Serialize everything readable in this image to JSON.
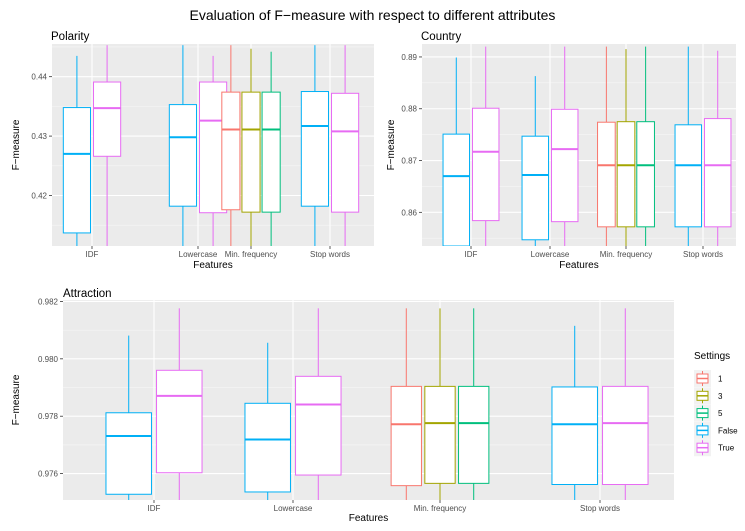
{
  "title": "Evaluation of F−measure with respect to different attributes",
  "legend": {
    "title": "Settings",
    "items": [
      {
        "label": "1",
        "color": "#F8766D"
      },
      {
        "label": "3",
        "color": "#A3A500"
      },
      {
        "label": "5",
        "color": "#00BF7D"
      },
      {
        "label": "False",
        "color": "#00B0F6"
      },
      {
        "label": "True",
        "color": "#E76BF3"
      }
    ]
  },
  "chart_data": [
    {
      "type": "box",
      "title": "Polarity",
      "xlabel": "Features",
      "ylabel": "F−measure",
      "ylim": [
        0.4115,
        0.4455
      ],
      "yticks": [
        0.42,
        0.43,
        0.44
      ],
      "ytick_labels": [
        "0.42",
        "0.43",
        "0.44"
      ],
      "categories": [
        "IDF",
        "Lowercase",
        "Min. frequency",
        "Stop words"
      ],
      "grid": true,
      "series": [
        {
          "setting": "1",
          "boxes": [
            {
              "category": "Min. frequency",
              "whislo": 0.4115,
              "q1": 0.4176,
              "median": 0.4311,
              "q3": 0.4374,
              "whishi": 0.4453
            }
          ]
        },
        {
          "setting": "3",
          "boxes": [
            {
              "category": "Min. frequency",
              "whislo": 0.4115,
              "q1": 0.4172,
              "median": 0.4311,
              "q3": 0.4374,
              "whishi": 0.4447
            }
          ]
        },
        {
          "setting": "5",
          "boxes": [
            {
              "category": "Min. frequency",
              "whislo": 0.4115,
              "q1": 0.4172,
              "median": 0.4311,
              "q3": 0.4374,
              "whishi": 0.4442
            }
          ]
        },
        {
          "setting": "False",
          "boxes": [
            {
              "category": "IDF",
              "whislo": 0.4115,
              "q1": 0.4137,
              "median": 0.427,
              "q3": 0.4348,
              "whishi": 0.4435
            },
            {
              "category": "Lowercase",
              "whislo": 0.4115,
              "q1": 0.4182,
              "median": 0.4298,
              "q3": 0.4353,
              "whishi": 0.4453
            },
            {
              "category": "Stop words",
              "whislo": 0.4115,
              "q1": 0.4182,
              "median": 0.4317,
              "q3": 0.4375,
              "whishi": 0.4453
            }
          ]
        },
        {
          "setting": "True",
          "boxes": [
            {
              "category": "IDF",
              "whislo": 0.4115,
              "q1": 0.4266,
              "median": 0.4347,
              "q3": 0.4391,
              "whishi": 0.4453
            },
            {
              "category": "Lowercase",
              "whislo": 0.4115,
              "q1": 0.4171,
              "median": 0.4326,
              "q3": 0.4391,
              "whishi": 0.4435
            },
            {
              "category": "Stop words",
              "whislo": 0.4115,
              "q1": 0.4172,
              "median": 0.4308,
              "q3": 0.4372,
              "whishi": 0.4453
            }
          ]
        }
      ]
    },
    {
      "type": "box",
      "title": "Country",
      "xlabel": "Features",
      "ylabel": "F−measure",
      "ylim": [
        0.8535,
        0.8925
      ],
      "yticks": [
        0.86,
        0.87,
        0.88,
        0.89
      ],
      "ytick_labels": [
        "0.86",
        "0.87",
        "0.88",
        "0.89"
      ],
      "categories": [
        "IDF",
        "Lowercase",
        "Min. frequency",
        "Stop words"
      ],
      "grid": true,
      "series": [
        {
          "setting": "1",
          "boxes": [
            {
              "category": "Min. frequency",
              "whislo": 0.8535,
              "q1": 0.8572,
              "median": 0.8691,
              "q3": 0.8774,
              "whishi": 0.892
            }
          ]
        },
        {
          "setting": "3",
          "boxes": [
            {
              "category": "Min. frequency",
              "whislo": 0.8535,
              "q1": 0.8572,
              "median": 0.8691,
              "q3": 0.8775,
              "whishi": 0.8915
            }
          ]
        },
        {
          "setting": "5",
          "boxes": [
            {
              "category": "Min. frequency",
              "whislo": 0.8535,
              "q1": 0.8572,
              "median": 0.8691,
              "q3": 0.8775,
              "whishi": 0.892
            }
          ]
        },
        {
          "setting": "False",
          "boxes": [
            {
              "category": "IDF",
              "whislo": 0.8535,
              "q1": 0.8535,
              "median": 0.867,
              "q3": 0.8751,
              "whishi": 0.8899
            },
            {
              "category": "Lowercase",
              "whislo": 0.8535,
              "q1": 0.8547,
              "median": 0.8672,
              "q3": 0.8747,
              "whishi": 0.8863
            },
            {
              "category": "Stop words",
              "whislo": 0.8535,
              "q1": 0.8572,
              "median": 0.8691,
              "q3": 0.8769,
              "whishi": 0.892
            }
          ]
        },
        {
          "setting": "True",
          "boxes": [
            {
              "category": "IDF",
              "whislo": 0.8535,
              "q1": 0.8584,
              "median": 0.8717,
              "q3": 0.8801,
              "whishi": 0.892
            },
            {
              "category": "Lowercase",
              "whislo": 0.8535,
              "q1": 0.8582,
              "median": 0.8722,
              "q3": 0.8799,
              "whishi": 0.892
            },
            {
              "category": "Stop words",
              "whislo": 0.8535,
              "q1": 0.8572,
              "median": 0.8691,
              "q3": 0.8781,
              "whishi": 0.8912
            }
          ]
        }
      ]
    },
    {
      "type": "box",
      "title": "Attraction",
      "xlabel": "Features",
      "ylabel": "F−measure",
      "ylim": [
        0.97508,
        0.98205
      ],
      "yticks": [
        0.976,
        0.978,
        0.98,
        0.982
      ],
      "ytick_labels": [
        "0.976",
        "0.978",
        "0.980",
        "0.982"
      ],
      "categories": [
        "IDF",
        "Lowercase",
        "Min. frequency",
        "Stop words"
      ],
      "grid": true,
      "series": [
        {
          "setting": "1",
          "boxes": [
            {
              "category": "Min. frequency",
              "whislo": 0.97508,
              "q1": 0.97558,
              "median": 0.97772,
              "q3": 0.97904,
              "whishi": 0.98176
            }
          ]
        },
        {
          "setting": "3",
          "boxes": [
            {
              "category": "Min. frequency",
              "whislo": 0.97508,
              "q1": 0.97566,
              "median": 0.97776,
              "q3": 0.97904,
              "whishi": 0.98176
            }
          ]
        },
        {
          "setting": "5",
          "boxes": [
            {
              "category": "Min. frequency",
              "whislo": 0.97508,
              "q1": 0.97566,
              "median": 0.97776,
              "q3": 0.97904,
              "whishi": 0.98176
            }
          ]
        },
        {
          "setting": "False",
          "boxes": [
            {
              "category": "IDF",
              "whislo": 0.97508,
              "q1": 0.97528,
              "median": 0.97731,
              "q3": 0.97812,
              "whishi": 0.98081
            },
            {
              "category": "Lowercase",
              "whislo": 0.97508,
              "q1": 0.97536,
              "median": 0.97719,
              "q3": 0.97845,
              "whishi": 0.98056
            },
            {
              "category": "Stop words",
              "whislo": 0.97508,
              "q1": 0.97562,
              "median": 0.97772,
              "q3": 0.97902,
              "whishi": 0.98115
            }
          ]
        },
        {
          "setting": "True",
          "boxes": [
            {
              "category": "IDF",
              "whislo": 0.97508,
              "q1": 0.97603,
              "median": 0.97871,
              "q3": 0.9796,
              "whishi": 0.98176
            },
            {
              "category": "Lowercase",
              "whislo": 0.97508,
              "q1": 0.97595,
              "median": 0.97841,
              "q3": 0.97939,
              "whishi": 0.98176
            },
            {
              "category": "Stop words",
              "whislo": 0.97508,
              "q1": 0.97562,
              "median": 0.97776,
              "q3": 0.97904,
              "whishi": 0.98176
            }
          ]
        }
      ]
    }
  ]
}
